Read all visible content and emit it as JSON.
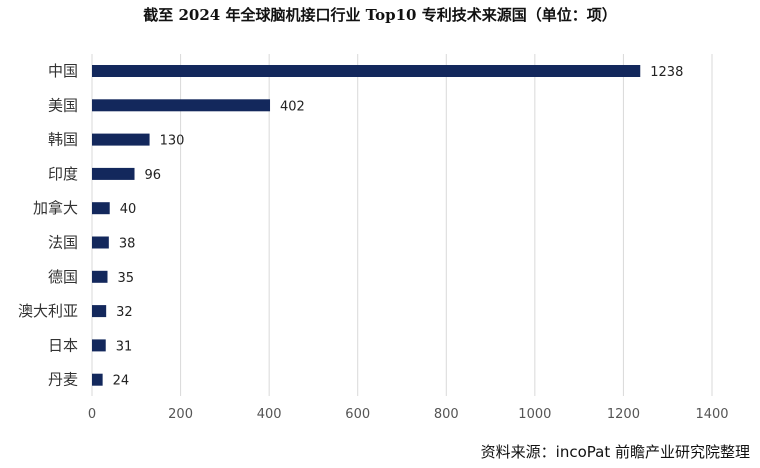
{
  "chart_data": {
    "type": "bar",
    "orientation": "horizontal",
    "title": "截至 2024 年全球脑机接口行业 Top10 专利技术来源国（单位：项）",
    "categories": [
      "中国",
      "美国",
      "韩国",
      "印度",
      "加拿大",
      "法国",
      "德国",
      "澳大利亚",
      "日本",
      "丹麦"
    ],
    "values": [
      1238,
      402,
      130,
      96,
      40,
      38,
      35,
      32,
      31,
      24
    ],
    "xlim": [
      0,
      1400
    ],
    "x_ticks": [
      0,
      200,
      400,
      600,
      800,
      1000,
      1200,
      1400
    ],
    "xlabel": "",
    "ylabel": "",
    "grid": "vertical",
    "legend": "none",
    "bar_color": "#13285c",
    "grid_color": "#d9d9d9"
  },
  "source": "资料来源：incoPat 前瞻产业研究院整理"
}
